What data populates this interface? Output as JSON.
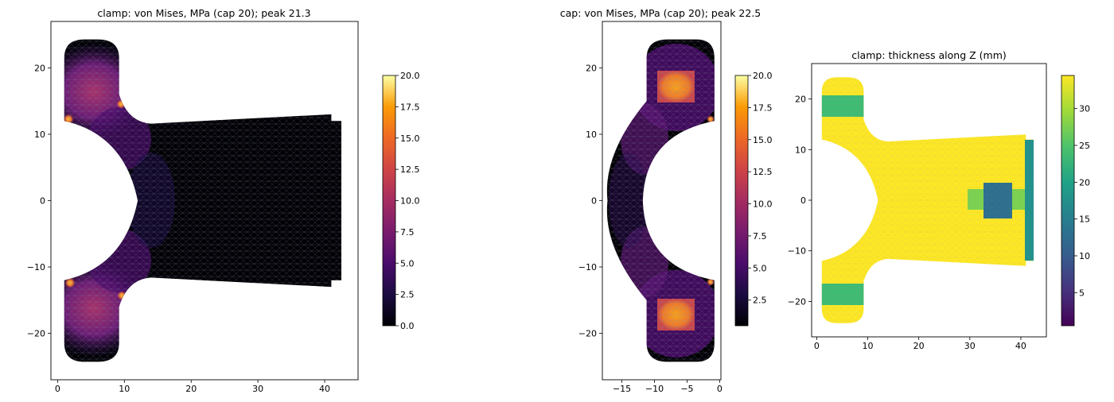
{
  "chart_data": [
    {
      "type": "heatmap",
      "title": "clamp: von Mises, MPa (cap 20); peak 21.3",
      "colormap": "inferno",
      "xlim": [
        -1,
        45
      ],
      "ylim": [
        -27,
        27
      ],
      "xticks": [
        0,
        10,
        20,
        30,
        40
      ],
      "yticks": [
        -20,
        -10,
        0,
        10,
        20
      ],
      "colorbar": {
        "range": [
          0,
          20
        ],
        "ticks": [
          0.0,
          2.5,
          5.0,
          7.5,
          10.0,
          12.5,
          15.0,
          17.5,
          20.0
        ],
        "tick_labels": [
          "0.0",
          "2.5",
          "5.0",
          "7.5",
          "10.0",
          "12.5",
          "15.0",
          "17.5",
          "20.0"
        ]
      },
      "peak": 21.3,
      "cap": 20
    },
    {
      "type": "heatmap",
      "title": "cap: von Mises, MPa (cap 20); peak 22.5",
      "colormap": "inferno",
      "xlim": [
        -18,
        0.2
      ],
      "ylim": [
        -27,
        27
      ],
      "xticks": [
        -15,
        -10,
        -5,
        0
      ],
      "xtick_labels": [
        "−15",
        "−10",
        "−5",
        "0"
      ],
      "yticks": [
        -20,
        -10,
        0,
        10,
        20
      ],
      "colorbar": {
        "range": [
          0.5,
          20
        ],
        "ticks": [
          2.5,
          5.0,
          7.5,
          10.0,
          12.5,
          15.0,
          17.5,
          20.0
        ],
        "tick_labels": [
          "2.5",
          "5.0",
          "7.5",
          "10.0",
          "12.5",
          "15.0",
          "17.5",
          "20.0"
        ]
      },
      "peak": 22.5,
      "cap": 20
    },
    {
      "type": "heatmap",
      "title": "clamp: thickness along Z (mm)",
      "colormap": "viridis",
      "xlim": [
        -1,
        45
      ],
      "ylim": [
        -27,
        27
      ],
      "xticks": [
        0,
        10,
        20,
        30,
        40
      ],
      "yticks": [
        -20,
        -10,
        0,
        10,
        20
      ],
      "colorbar": {
        "range": [
          0.5,
          34.5
        ],
        "ticks": [
          5,
          10,
          15,
          20,
          25,
          30
        ],
        "tick_labels": [
          "5",
          "10",
          "15",
          "20",
          "25",
          "30"
        ]
      }
    }
  ],
  "tick_text": {
    "p1": {
      "x": [
        "0",
        "10",
        "20",
        "30",
        "40"
      ],
      "y": [
        "−20",
        "−10",
        "0",
        "10",
        "20"
      ]
    },
    "p2": {
      "x": [
        "−15",
        "−10",
        "−5",
        "0"
      ],
      "y": [
        "−20",
        "−10",
        "0",
        "10",
        "20"
      ]
    },
    "p3": {
      "x": [
        "0",
        "10",
        "20",
        "30",
        "40"
      ],
      "y": [
        "−20",
        "−10",
        "0",
        "10",
        "20"
      ]
    }
  },
  "cbar_text": {
    "c1": [
      "0.0",
      "2.5",
      "5.0",
      "7.5",
      "10.0",
      "12.5",
      "15.0",
      "17.5",
      "20.0"
    ],
    "c2": [
      "2.5",
      "5.0",
      "7.5",
      "10.0",
      "12.5",
      "15.0",
      "17.5",
      "20.0"
    ],
    "c3": [
      "5",
      "10",
      "15",
      "20",
      "25",
      "30"
    ]
  }
}
